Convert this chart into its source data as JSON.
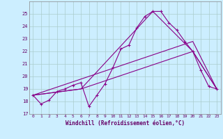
{
  "xlabel": "Windchill (Refroidissement éolien,°C)",
  "background_color": "#cceeff",
  "grid_color": "#aacccc",
  "line_color": "#880088",
  "x_hours": [
    0,
    1,
    2,
    3,
    4,
    5,
    6,
    7,
    8,
    9,
    10,
    11,
    12,
    13,
    14,
    15,
    16,
    17,
    18,
    19,
    20,
    21,
    22,
    23
  ],
  "temp_main": [
    18.5,
    17.8,
    18.1,
    18.8,
    19.0,
    19.3,
    19.5,
    17.6,
    18.5,
    19.4,
    20.7,
    22.2,
    22.5,
    23.9,
    24.8,
    25.2,
    25.2,
    24.3,
    23.7,
    22.8,
    22.0,
    20.5,
    19.2,
    19.0
  ],
  "temp_line2_x": [
    0,
    6,
    15,
    20,
    23
  ],
  "temp_line2_y": [
    18.5,
    19.0,
    25.2,
    22.0,
    19.0
  ],
  "temp_line3_x": [
    0,
    6,
    20,
    23
  ],
  "temp_line3_y": [
    18.5,
    19.0,
    22.0,
    19.0
  ],
  "temp_line4_x": [
    0,
    20,
    23
  ],
  "temp_line4_y": [
    18.5,
    22.8,
    19.0
  ],
  "ylim": [
    17,
    26
  ],
  "xlim": [
    -0.5,
    23.5
  ],
  "yticks": [
    17,
    18,
    19,
    20,
    21,
    22,
    23,
    24,
    25
  ],
  "xticks": [
    0,
    1,
    2,
    3,
    4,
    5,
    6,
    7,
    8,
    9,
    10,
    11,
    12,
    13,
    14,
    15,
    16,
    17,
    18,
    19,
    20,
    21,
    22,
    23
  ]
}
